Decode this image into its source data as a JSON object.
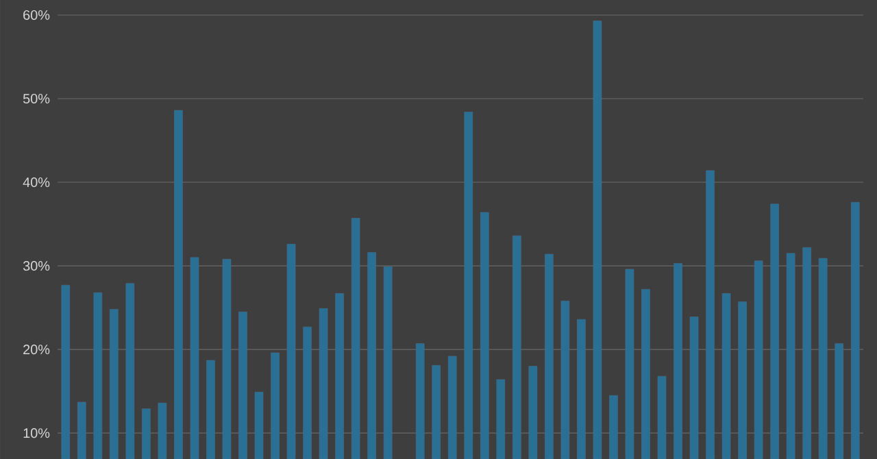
{
  "chart_data": {
    "type": "bar",
    "categories": [
      null,
      null,
      null,
      null,
      null,
      null,
      null,
      null,
      null,
      null,
      null,
      null,
      null,
      null,
      null,
      null,
      null,
      null,
      null,
      null,
      null,
      null,
      null,
      null,
      null,
      null,
      null,
      null,
      null,
      null,
      null,
      null,
      null,
      null,
      null,
      null,
      null,
      null,
      null,
      null,
      null,
      null,
      null,
      null,
      null,
      null,
      null,
      null,
      null,
      null
    ],
    "values": [
      27.7,
      13.7,
      26.8,
      24.8,
      27.9,
      12.9,
      13.6,
      48.6,
      31.0,
      18.7,
      30.8,
      24.5,
      14.9,
      19.6,
      32.6,
      22.7,
      24.9,
      26.7,
      35.7,
      31.6,
      29.9,
      null,
      20.7,
      18.1,
      19.2,
      48.4,
      36.4,
      16.4,
      33.6,
      18.0,
      31.4,
      25.8,
      23.6,
      59.3,
      14.5,
      29.6,
      27.2,
      16.8,
      30.3,
      23.9,
      41.4,
      26.7,
      25.7,
      30.6,
      37.4,
      31.5,
      32.2,
      30.9,
      20.7,
      37.6
    ],
    "color": "#2a6f94",
    "ylim": [
      6.9,
      61.8
    ],
    "yticks": [
      {
        "value": 10,
        "label": "10%"
      },
      {
        "value": 20,
        "label": "20%"
      },
      {
        "value": 30,
        "label": "30%"
      },
      {
        "value": 40,
        "label": "40%"
      },
      {
        "value": 50,
        "label": "50%"
      },
      {
        "value": 60,
        "label": "60%"
      }
    ],
    "grid": "y",
    "tick_labels": "y"
  }
}
